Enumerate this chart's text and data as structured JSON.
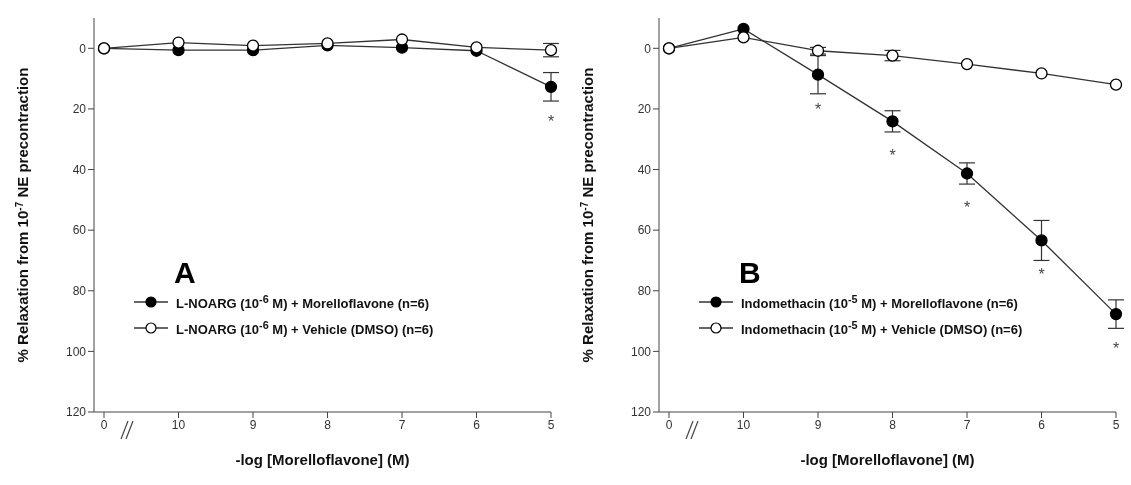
{
  "chart_data": [
    {
      "type": "line",
      "categories": [
        "0",
        "10",
        "9",
        "8",
        "7",
        "6",
        "5"
      ],
      "xlabel": "-log [Morelloflavone] (M)",
      "ylabel": "% Relaxation from 10$^{-7}$ NE precontraction",
      "ylim": [
        120,
        -10
      ],
      "yticks": [
        0,
        20,
        40,
        60,
        80,
        100,
        120
      ],
      "legend": "left",
      "marker": "circle",
      "line_style": "solid",
      "series": [
        {
          "name": "L-NOARG (10$^{-6}$ M) + Morelloflavone (n=6)",
          "color": "#000000",
          "values": [
            0,
            0.6,
            0.6,
            -1,
            -0.2,
            0.8,
            12.7
          ],
          "errors": [
            null,
            null,
            null,
            null,
            null,
            null,
            4.7
          ]
        },
        {
          "name": "L-NOARG (10$^{-6}$ M) + Vehicle (DMSO) (n=6)",
          "color": "#ffffff",
          "values": [
            0,
            -1.9,
            -0.9,
            -1.6,
            -2.9,
            -0.3,
            0.6
          ],
          "errors": [
            null,
            null,
            null,
            null,
            null,
            null,
            2.2
          ]
        }
      ],
      "annotations": [
        "A",
        {
          "text": "*",
          "x": "5",
          "y": 12.7
        }
      ]
    },
    {
      "type": "line",
      "categories": [
        "0",
        "10",
        "9",
        "8",
        "7",
        "6",
        "5"
      ],
      "xlabel": "-log [Morelloflavone] (M)",
      "ylabel": "% Relaxation from 10$^{-7}$ NE precontraction",
      "ylim": [
        120,
        -10
      ],
      "yticks": [
        0,
        20,
        40,
        60,
        80,
        100,
        120
      ],
      "legend": "left",
      "marker": "circle",
      "line_style": "solid",
      "series": [
        {
          "name": "Indomethacin (10$^{-5}$ M) + Morelloflavone (n=6)",
          "color": "#000000",
          "values": [
            0,
            -6.4,
            8.7,
            24.1,
            41.3,
            63.4,
            87.7
          ],
          "errors": [
            null,
            null,
            6.3,
            3.5,
            3.5,
            6.6,
            4.7
          ]
        },
        {
          "name": "Indomethacin (10$^{-5}$ M) + Vehicle (DMSO) (n=6)",
          "color": "#ffffff",
          "values": [
            0,
            -3.6,
            0.8,
            2.4,
            5.2,
            8.3,
            12
          ],
          "errors": [
            null,
            null,
            1.1,
            1.7,
            null,
            null,
            null
          ]
        }
      ],
      "annotations": [
        "B",
        {
          "text": "*",
          "x": "9",
          "y": 8.7
        },
        {
          "text": "*",
          "x": "8",
          "y": 24.1
        },
        {
          "text": "*",
          "x": "7",
          "y": 41.3
        },
        {
          "text": "*",
          "x": "6",
          "y": 63.4
        },
        {
          "text": "*",
          "x": "5",
          "y": 87.7
        }
      ]
    }
  ]
}
